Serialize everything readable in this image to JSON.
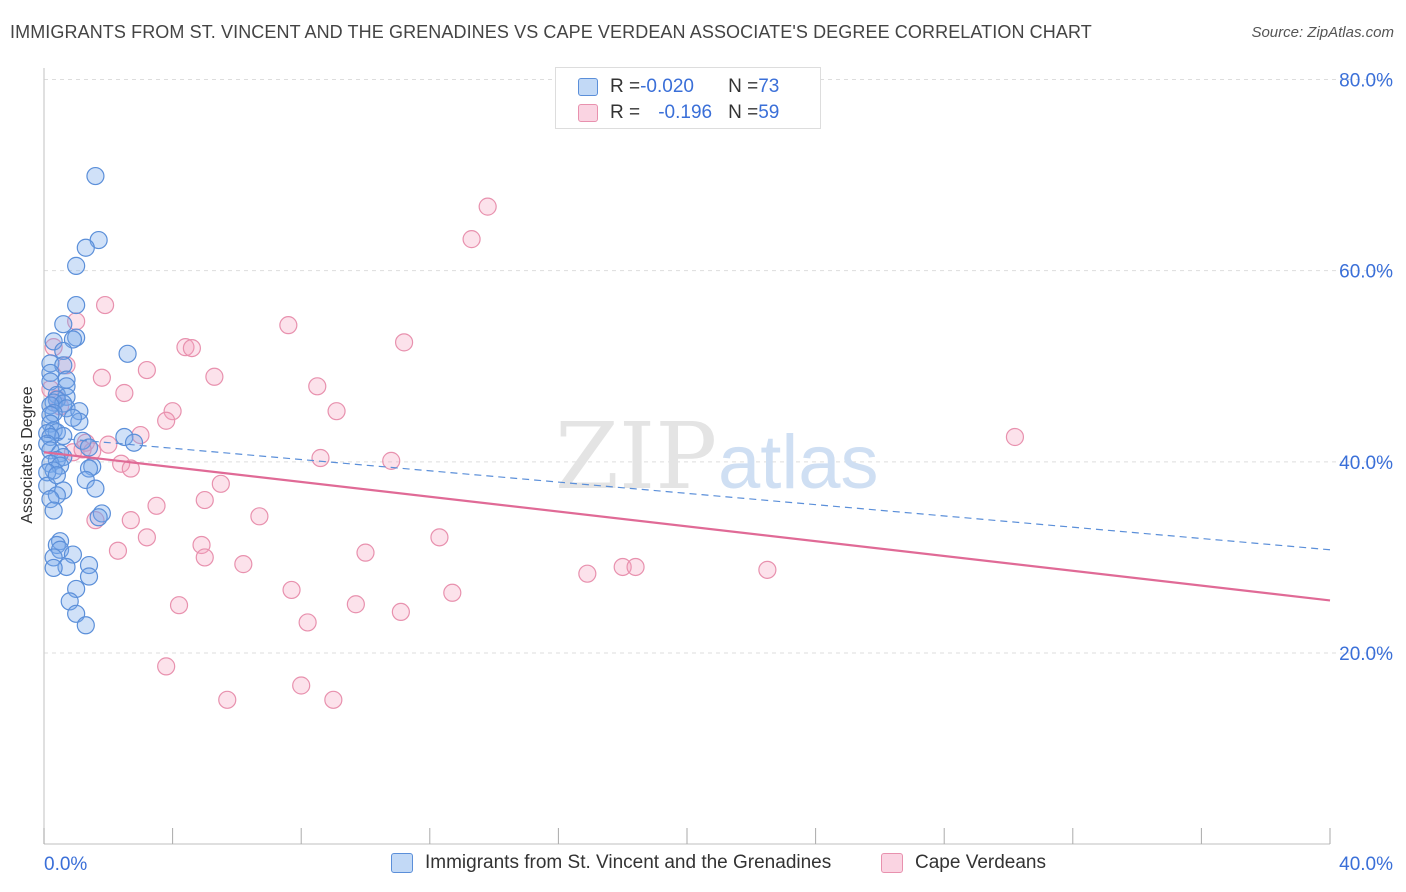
{
  "title": "IMMIGRANTS FROM ST. VINCENT AND THE GRENADINES VS CAPE VERDEAN ASSOCIATE'S DEGREE CORRELATION CHART",
  "source": "Source: ZipAtlas.com",
  "watermark": {
    "zip": "ZIP",
    "atlas": "atlas"
  },
  "legend": {
    "row1": {
      "r_label": "R = ",
      "r_value": "-0.020",
      "n_label": "N = ",
      "n_value": "73"
    },
    "row2": {
      "r_label": "R = ",
      "r_value": "-0.196",
      "n_label": "N = ",
      "n_value": "59"
    }
  },
  "bottom_legend": {
    "series1": "Immigrants from St. Vincent and the Grenadines",
    "series2": "Cape Verdeans"
  },
  "colors": {
    "blue_fill": "rgba(120,170,235,0.35)",
    "blue_stroke": "#5b8fd9",
    "pink_fill": "rgba(245,160,190,0.30)",
    "pink_stroke": "#e891ae",
    "blue_line": "#5b8fd9",
    "pink_line": "#e06a96",
    "tick_text": "#3a6fd8",
    "grid": "#dddddd"
  },
  "chart_data": {
    "type": "scatter",
    "title": "IMMIGRANTS FROM ST. VINCENT AND THE GRENADINES VS CAPE VERDEAN ASSOCIATE'S DEGREE CORRELATION CHART",
    "xlabel": "",
    "ylabel": "Associate's Degree",
    "xlim": [
      0,
      40
    ],
    "ylim": [
      3,
      83
    ],
    "x_tick_labels": [
      "0.0%",
      "40.0%"
    ],
    "y_ticks": [
      20,
      40,
      60,
      80
    ],
    "y_tick_labels": [
      "20.0%",
      "40.0%",
      "60.0%",
      "80.0%"
    ],
    "grid": true,
    "legend_position": "top-center",
    "series": [
      {
        "name": "Immigrants from St. Vincent and the Grenadines",
        "R": -0.02,
        "N": 73,
        "trend": {
          "x": [
            0,
            40
          ],
          "y": [
            42.6,
            30.8
          ],
          "style": "dashed"
        },
        "points": [
          [
            1.6,
            69.9
          ],
          [
            1.7,
            63.2
          ],
          [
            1.3,
            62.4
          ],
          [
            1.0,
            60.5
          ],
          [
            1.0,
            56.4
          ],
          [
            0.6,
            54.4
          ],
          [
            1.0,
            53.0
          ],
          [
            0.9,
            52.8
          ],
          [
            0.3,
            52.6
          ],
          [
            0.6,
            51.6
          ],
          [
            2.6,
            51.3
          ],
          [
            0.2,
            50.3
          ],
          [
            0.6,
            50.1
          ],
          [
            0.2,
            49.3
          ],
          [
            0.7,
            48.6
          ],
          [
            0.2,
            48.4
          ],
          [
            0.7,
            47.9
          ],
          [
            0.4,
            47.0
          ],
          [
            0.7,
            46.8
          ],
          [
            0.4,
            46.5
          ],
          [
            0.3,
            46.2
          ],
          [
            0.6,
            46.1
          ],
          [
            0.2,
            45.9
          ],
          [
            0.7,
            45.6
          ],
          [
            0.3,
            45.1
          ],
          [
            1.1,
            45.3
          ],
          [
            0.2,
            44.9
          ],
          [
            1.1,
            44.2
          ],
          [
            0.2,
            44.0
          ],
          [
            0.3,
            43.3
          ],
          [
            0.4,
            43.1
          ],
          [
            0.1,
            43.0
          ],
          [
            0.6,
            42.7
          ],
          [
            0.2,
            42.6
          ],
          [
            2.5,
            42.6
          ],
          [
            1.2,
            42.2
          ],
          [
            2.8,
            42.0
          ],
          [
            0.1,
            41.9
          ],
          [
            1.4,
            41.5
          ],
          [
            0.2,
            41.2
          ],
          [
            0.5,
            40.9
          ],
          [
            0.6,
            40.5
          ],
          [
            0.4,
            40.2
          ],
          [
            0.2,
            39.8
          ],
          [
            0.5,
            39.6
          ],
          [
            1.5,
            39.5
          ],
          [
            1.4,
            39.3
          ],
          [
            0.3,
            39.1
          ],
          [
            0.1,
            38.9
          ],
          [
            1.3,
            38.1
          ],
          [
            0.1,
            37.5
          ],
          [
            1.6,
            37.2
          ],
          [
            0.6,
            37.0
          ],
          [
            0.4,
            36.5
          ],
          [
            0.2,
            36.1
          ],
          [
            0.3,
            34.9
          ],
          [
            1.8,
            34.6
          ],
          [
            1.7,
            34.2
          ],
          [
            0.5,
            31.7
          ],
          [
            0.4,
            31.3
          ],
          [
            0.5,
            30.8
          ],
          [
            0.9,
            30.3
          ],
          [
            0.3,
            30.0
          ],
          [
            1.4,
            29.2
          ],
          [
            0.7,
            29.0
          ],
          [
            0.3,
            28.9
          ],
          [
            1.4,
            28.0
          ],
          [
            1.0,
            26.7
          ],
          [
            0.8,
            25.4
          ],
          [
            1.0,
            24.1
          ],
          [
            1.3,
            22.9
          ],
          [
            0.4,
            38.6
          ],
          [
            0.9,
            44.6
          ]
        ]
      },
      {
        "name": "Cape Verdeans",
        "R": -0.196,
        "N": 59,
        "trend": {
          "x": [
            0,
            40
          ],
          "y": [
            41.0,
            25.5
          ],
          "style": "solid"
        },
        "points": [
          [
            13.8,
            66.7
          ],
          [
            13.3,
            63.3
          ],
          [
            1.9,
            56.4
          ],
          [
            7.6,
            54.3
          ],
          [
            1.0,
            54.7
          ],
          [
            11.2,
            52.5
          ],
          [
            4.4,
            52.0
          ],
          [
            4.6,
            51.9
          ],
          [
            0.7,
            50.1
          ],
          [
            3.2,
            49.6
          ],
          [
            5.3,
            48.9
          ],
          [
            1.8,
            48.8
          ],
          [
            8.5,
            47.9
          ],
          [
            0.2,
            47.6
          ],
          [
            2.5,
            47.2
          ],
          [
            0.4,
            46.6
          ],
          [
            0.5,
            45.8
          ],
          [
            4.0,
            45.3
          ],
          [
            9.1,
            45.3
          ],
          [
            3.8,
            44.3
          ],
          [
            30.2,
            42.6
          ],
          [
            3.0,
            42.8
          ],
          [
            1.3,
            42.0
          ],
          [
            2.0,
            41.8
          ],
          [
            0.9,
            41.0
          ],
          [
            1.5,
            41.1
          ],
          [
            8.6,
            40.4
          ],
          [
            10.8,
            40.1
          ],
          [
            2.4,
            39.8
          ],
          [
            2.7,
            39.3
          ],
          [
            5.5,
            37.7
          ],
          [
            5.0,
            36.0
          ],
          [
            3.5,
            35.4
          ],
          [
            6.7,
            34.3
          ],
          [
            1.6,
            33.9
          ],
          [
            2.7,
            33.9
          ],
          [
            3.2,
            32.1
          ],
          [
            12.3,
            32.1
          ],
          [
            4.9,
            31.3
          ],
          [
            2.3,
            30.7
          ],
          [
            10.0,
            30.5
          ],
          [
            5.0,
            30.0
          ],
          [
            6.2,
            29.3
          ],
          [
            18.0,
            29.0
          ],
          [
            18.4,
            29.0
          ],
          [
            22.5,
            28.7
          ],
          [
            16.9,
            28.3
          ],
          [
            7.7,
            26.6
          ],
          [
            12.7,
            26.3
          ],
          [
            4.2,
            25.0
          ],
          [
            9.7,
            25.1
          ],
          [
            11.1,
            24.3
          ],
          [
            8.2,
            23.2
          ],
          [
            3.8,
            18.6
          ],
          [
            8.0,
            16.6
          ],
          [
            5.7,
            15.1
          ],
          [
            9.0,
            15.1
          ],
          [
            0.3,
            52.0
          ],
          [
            1.2,
            41.3
          ]
        ]
      }
    ]
  }
}
